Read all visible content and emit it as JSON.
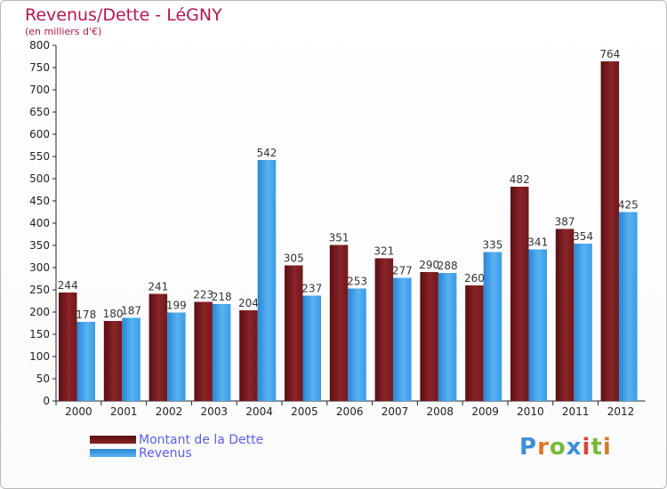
{
  "chart_data": {
    "type": "bar",
    "title": "Revenus/Dette - LéGNY",
    "subtitle": "(en milliers d'€)",
    "categories": [
      "2000",
      "2001",
      "2002",
      "2003",
      "2004",
      "2005",
      "2006",
      "2007",
      "2008",
      "2009",
      "2010",
      "2011",
      "2012"
    ],
    "series": [
      {
        "name": "Montant de la Dette",
        "values": [
          244,
          180,
          241,
          223,
          204,
          305,
          351,
          321,
          290,
          260,
          482,
          387,
          764
        ],
        "color": "#7d1f22"
      },
      {
        "name": "Revenus",
        "values": [
          178,
          187,
          199,
          218,
          542,
          237,
          253,
          277,
          288,
          335,
          341,
          354,
          425
        ],
        "color": "#3a9ae6"
      }
    ],
    "ylim": [
      0,
      800
    ],
    "yticks": [
      0,
      50,
      100,
      150,
      200,
      250,
      300,
      350,
      400,
      450,
      500,
      550,
      600,
      650,
      700,
      750,
      800
    ],
    "grid": false,
    "legend_position": "bottom-left"
  },
  "brand": {
    "logo_text": "Proxiti"
  }
}
